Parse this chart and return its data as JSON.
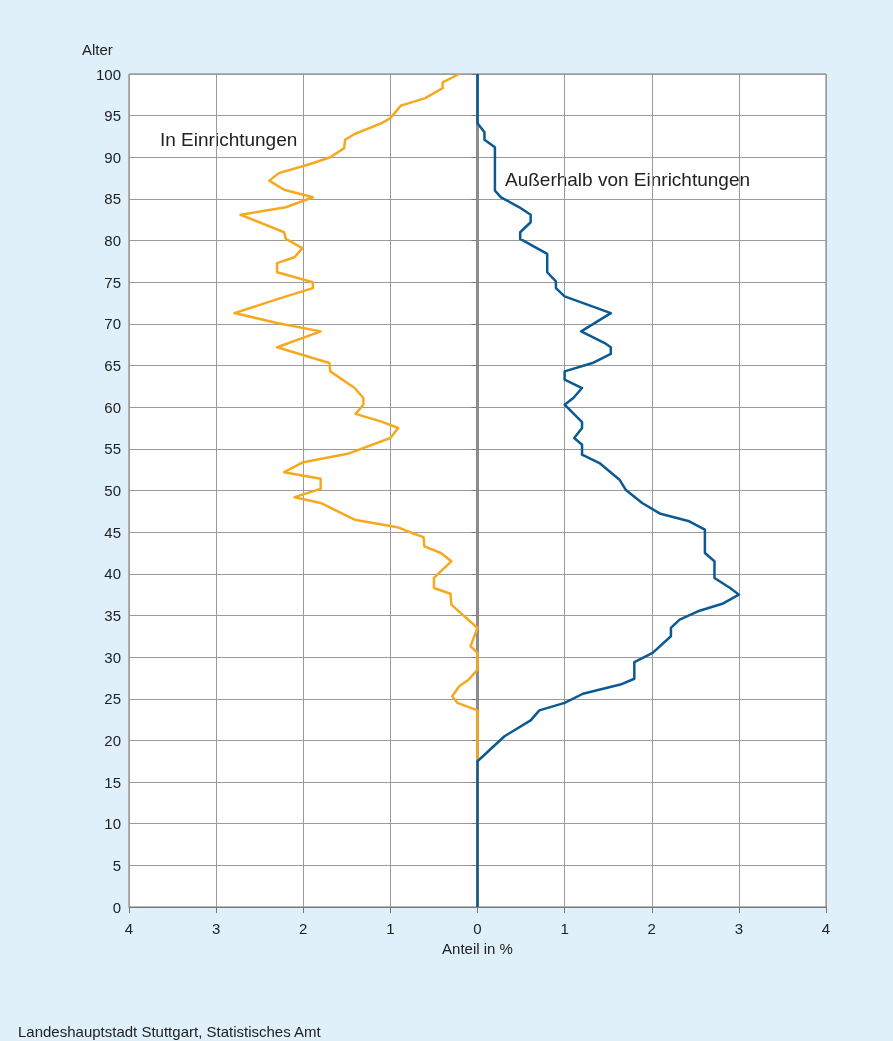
{
  "chart_data": {
    "type": "line",
    "xlabel": "Anteil in %",
    "ylabel": "Alter",
    "xlim": [
      -4,
      4
    ],
    "xticks": [
      {
        "value": -4,
        "label": "4"
      },
      {
        "value": -3,
        "label": "3"
      },
      {
        "value": -2,
        "label": "2"
      },
      {
        "value": -1,
        "label": "1"
      },
      0,
      1,
      2,
      3,
      4
    ],
    "ylim": [
      0,
      100
    ],
    "yticks": [
      0,
      5,
      10,
      15,
      20,
      25,
      30,
      35,
      40,
      45,
      50,
      55,
      60,
      65,
      70,
      75,
      80,
      85,
      90,
      95,
      100
    ],
    "grid": true,
    "legend": false,
    "marker": "none",
    "line_style": "solid",
    "ref_lines": [
      {
        "axis": "x",
        "value": 0,
        "color": "#8c8c8c"
      }
    ],
    "annotations": [
      "Landeshauptstadt Stuttgart, Statistisches Amt"
    ],
    "series": [
      {
        "name": "In Einrichtungen",
        "color": "#f5a91f",
        "x": [
          0,
          0,
          -0.23,
          -0.29,
          -0.21,
          -0.1,
          0,
          0,
          -0.08,
          0,
          -0.3,
          -0.31,
          -0.5,
          -0.5,
          -0.3,
          -0.42,
          -0.61,
          -0.62,
          -0.75,
          -0.92,
          -1.41,
          -1.8,
          -2.1,
          -1.8,
          -1.8,
          -2.22,
          -2.0,
          -1.49,
          -1.0,
          -0.91,
          -1.11,
          -1.4,
          -1.31,
          -1.31,
          -1.41,
          -1.69,
          -1.7,
          -2.3,
          -1.8,
          -2.3,
          -2.79,
          -2.26,
          -1.89,
          -1.89,
          -2.3,
          -2.3,
          -2.1,
          -2.01,
          -2.2,
          -2.22,
          -2.72,
          -2.2,
          -1.89,
          -2.22,
          -2.39,
          -2.28,
          -1.92,
          -1.69,
          -1.53,
          -1.52,
          -1.41,
          -1.1,
          -1.0,
          -0.88,
          -0.6,
          -0.4,
          -0.4,
          -0.21
        ],
        "values": [
          0,
          23.6,
          24.5,
          25.3,
          26.5,
          27.3,
          28.5,
          30.5,
          31.3,
          33.5,
          36.3,
          37.6,
          38.3,
          39.5,
          41.5,
          42.5,
          43.3,
          44.4,
          44.9,
          45.6,
          46.5,
          48.5,
          49.2,
          50.2,
          51.4,
          52.2,
          53.4,
          54.4,
          56.3,
          57.5,
          58.3,
          59.2,
          60.3,
          61.1,
          62.3,
          64.3,
          65.3,
          67.2,
          69.1,
          70.1,
          71.3,
          73.1,
          74.3,
          75.0,
          76.2,
          77.3,
          78.0,
          79.1,
          80.2,
          81.0,
          83.1,
          84.0,
          85.2,
          86.1,
          87.2,
          88.1,
          89.2,
          90.0,
          91.1,
          92.1,
          92.8,
          94.1,
          94.7,
          96.2,
          97.1,
          98.3,
          99,
          100
        ]
      },
      {
        "name": "Außerhalb von Einrichtungen",
        "color": "#0b5a92",
        "x": [
          0,
          0,
          0.31,
          0.61,
          0.71,
          1.0,
          1.21,
          1.64,
          1.8,
          1.8,
          2.01,
          2.22,
          2.22,
          2.32,
          2.53,
          2.81,
          3.0,
          2.9,
          2.72,
          2.72,
          2.61,
          2.61,
          2.43,
          2.1,
          1.89,
          1.7,
          1.63,
          1.4,
          1.2,
          1.2,
          1.11,
          1.2,
          1.2,
          1.0,
          1.1,
          1.2,
          1.0,
          1.0,
          1.32,
          1.53,
          1.53,
          1.46,
          1.19,
          1.53,
          1.0,
          0.9,
          0.9,
          0.8,
          0.8,
          0.49,
          0.49,
          0.61,
          0.61,
          0.48,
          0.27,
          0.2,
          0.2,
          0.08,
          0.08,
          0,
          0
        ],
        "values": [
          0,
          17.5,
          20.5,
          22.4,
          23.6,
          24.5,
          25.6,
          26.7,
          27.4,
          29.4,
          30.5,
          32.5,
          33.5,
          34.5,
          35.5,
          36.4,
          37.5,
          38.3,
          39.5,
          41.5,
          42.5,
          45.3,
          46.3,
          47.2,
          48.5,
          50.1,
          51.3,
          53.3,
          54.3,
          55.5,
          56.3,
          57.5,
          58.2,
          60.3,
          61.1,
          62.3,
          63.3,
          64.3,
          65.3,
          66.4,
          67.2,
          67.7,
          69.1,
          71.3,
          73.3,
          74.3,
          75.1,
          76.2,
          78.4,
          80.2,
          81.0,
          82.2,
          83.1,
          84.0,
          85.2,
          86.0,
          91.2,
          92.1,
          93.0,
          94.1,
          100
        ]
      }
    ]
  }
}
